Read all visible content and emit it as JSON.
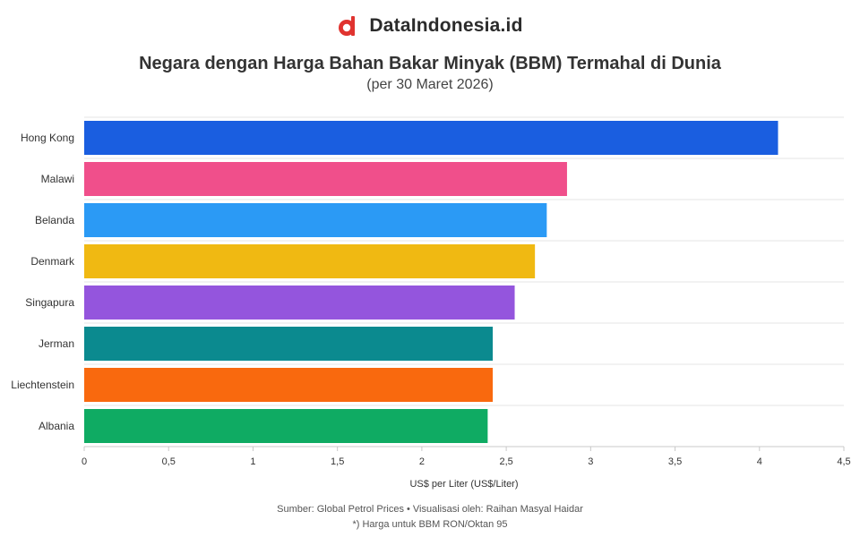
{
  "brand": {
    "name": "DataIndonesia.id",
    "logo_icon": "dataindonesia-logo-icon",
    "logo_color": "#e0332f"
  },
  "chart_data": {
    "type": "bar",
    "orientation": "horizontal",
    "title": "Negara dengan Harga Bahan Bakar Minyak (BBM) Termahal di Dunia",
    "subtitle": "(per 30 Maret 2026)",
    "categories": [
      "Hong Kong",
      "Malawi",
      "Belanda",
      "Denmark",
      "Singapura",
      "Jerman",
      "Liechtenstein",
      "Albania"
    ],
    "values": [
      4.11,
      2.86,
      2.74,
      2.67,
      2.55,
      2.42,
      2.42,
      2.39
    ],
    "colors": [
      "#1a5ee0",
      "#f04f8b",
      "#2b9af5",
      "#f0b912",
      "#9455dd",
      "#0b8a8f",
      "#f9690e",
      "#0fab63"
    ],
    "xlabel": "US$ per Liter (US$/Liter)",
    "ylabel": "",
    "xlim": [
      0,
      4.5
    ],
    "xticks": [
      {
        "value": 0,
        "label": "0"
      },
      {
        "value": 0.5,
        "label": "0,5"
      },
      {
        "value": 1,
        "label": "1"
      },
      {
        "value": 1.5,
        "label": "1,5"
      },
      {
        "value": 2,
        "label": "2"
      },
      {
        "value": 2.5,
        "label": "2,5"
      },
      {
        "value": 3,
        "label": "3"
      },
      {
        "value": 3.5,
        "label": "3,5"
      },
      {
        "value": 4,
        "label": "4"
      },
      {
        "value": 4.5,
        "label": "4,5"
      }
    ],
    "grid": true
  },
  "footer": {
    "source": "Sumber: Global Petrol Prices • Visualisasi oleh: Raihan Masyal Haidar",
    "note": "*) Harga untuk BBM RON/Oktan 95"
  }
}
